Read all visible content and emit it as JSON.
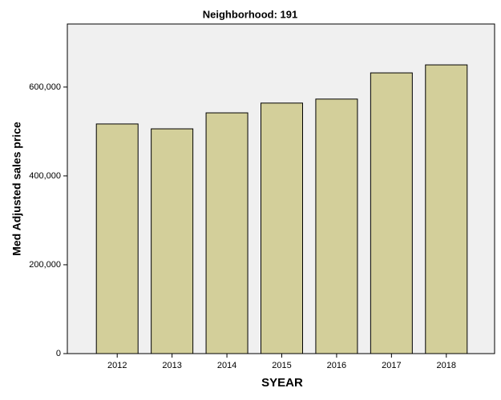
{
  "chart_data": {
    "type": "bar",
    "title": "Neighborhood: 191",
    "x_label": "SYEAR",
    "y_label": "Med Adjusted sales price",
    "categories": [
      "2012",
      "2013",
      "2014",
      "2015",
      "2016",
      "2017",
      "2018"
    ],
    "values": [
      517000,
      506000,
      542000,
      564000,
      573000,
      632000,
      650000
    ],
    "color": "#d3cf9a",
    "ylim": [
      0,
      742000
    ],
    "yticks": [
      0,
      {
        "value": 200000,
        "label": "200,000"
      },
      {
        "value": 400000,
        "label": "400,000"
      },
      {
        "value": 600000,
        "label": "600,000"
      }
    ]
  }
}
